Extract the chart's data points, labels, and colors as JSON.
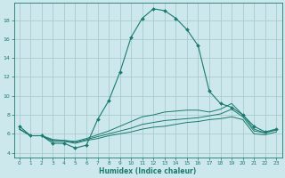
{
  "title": "",
  "xlabel": "Humidex (Indice chaleur)",
  "background_color": "#cce8ec",
  "grid_color": "#aacccc",
  "line_color": "#1a7a6e",
  "x_ticks": [
    0,
    1,
    2,
    3,
    4,
    5,
    6,
    7,
    8,
    9,
    10,
    11,
    12,
    13,
    14,
    15,
    16,
    17,
    18,
    19,
    20,
    21,
    22,
    23
  ],
  "y_ticks": [
    4,
    6,
    8,
    10,
    12,
    14,
    16,
    18
  ],
  "ylim": [
    3.5,
    19.8
  ],
  "xlim": [
    -0.5,
    23.5
  ],
  "line1_x": [
    0,
    1,
    2,
    3,
    4,
    5,
    6,
    7,
    8,
    9,
    10,
    11,
    12,
    13,
    14,
    15,
    16,
    17,
    18,
    19,
    20,
    21,
    22,
    23
  ],
  "line1_y": [
    6.8,
    5.8,
    5.8,
    5.0,
    5.0,
    4.5,
    4.8,
    7.5,
    9.5,
    12.5,
    16.2,
    18.2,
    19.2,
    19.0,
    18.2,
    17.0,
    15.3,
    10.5,
    9.2,
    8.8,
    8.0,
    6.8,
    6.2,
    6.5
  ],
  "line2_x": [
    0,
    1,
    2,
    3,
    4,
    5,
    6,
    7,
    8,
    9,
    10,
    11,
    12,
    13,
    14,
    15,
    16,
    17,
    18,
    19,
    20,
    21,
    22,
    23
  ],
  "line2_y": [
    6.5,
    5.8,
    5.8,
    5.2,
    5.2,
    5.0,
    5.3,
    5.5,
    5.8,
    6.0,
    6.2,
    6.5,
    6.7,
    6.8,
    7.0,
    7.2,
    7.3,
    7.5,
    7.6,
    7.8,
    7.5,
    6.0,
    5.9,
    6.2
  ],
  "line3_x": [
    0,
    1,
    2,
    3,
    4,
    5,
    6,
    7,
    8,
    9,
    10,
    11,
    12,
    13,
    14,
    15,
    16,
    17,
    18,
    19,
    20,
    21,
    22,
    23
  ],
  "line3_y": [
    6.5,
    5.8,
    5.8,
    5.3,
    5.3,
    5.1,
    5.4,
    5.7,
    6.0,
    6.3,
    6.6,
    7.0,
    7.2,
    7.4,
    7.5,
    7.6,
    7.7,
    7.9,
    8.1,
    8.6,
    7.8,
    6.3,
    6.1,
    6.4
  ],
  "line4_x": [
    0,
    1,
    2,
    3,
    4,
    5,
    6,
    7,
    8,
    9,
    10,
    11,
    12,
    13,
    14,
    15,
    16,
    17,
    18,
    19,
    20,
    21,
    22,
    23
  ],
  "line4_y": [
    6.5,
    5.8,
    5.8,
    5.4,
    5.3,
    5.2,
    5.5,
    5.9,
    6.3,
    6.8,
    7.3,
    7.8,
    8.0,
    8.3,
    8.4,
    8.5,
    8.5,
    8.3,
    8.6,
    9.2,
    8.0,
    6.5,
    6.1,
    6.5
  ]
}
